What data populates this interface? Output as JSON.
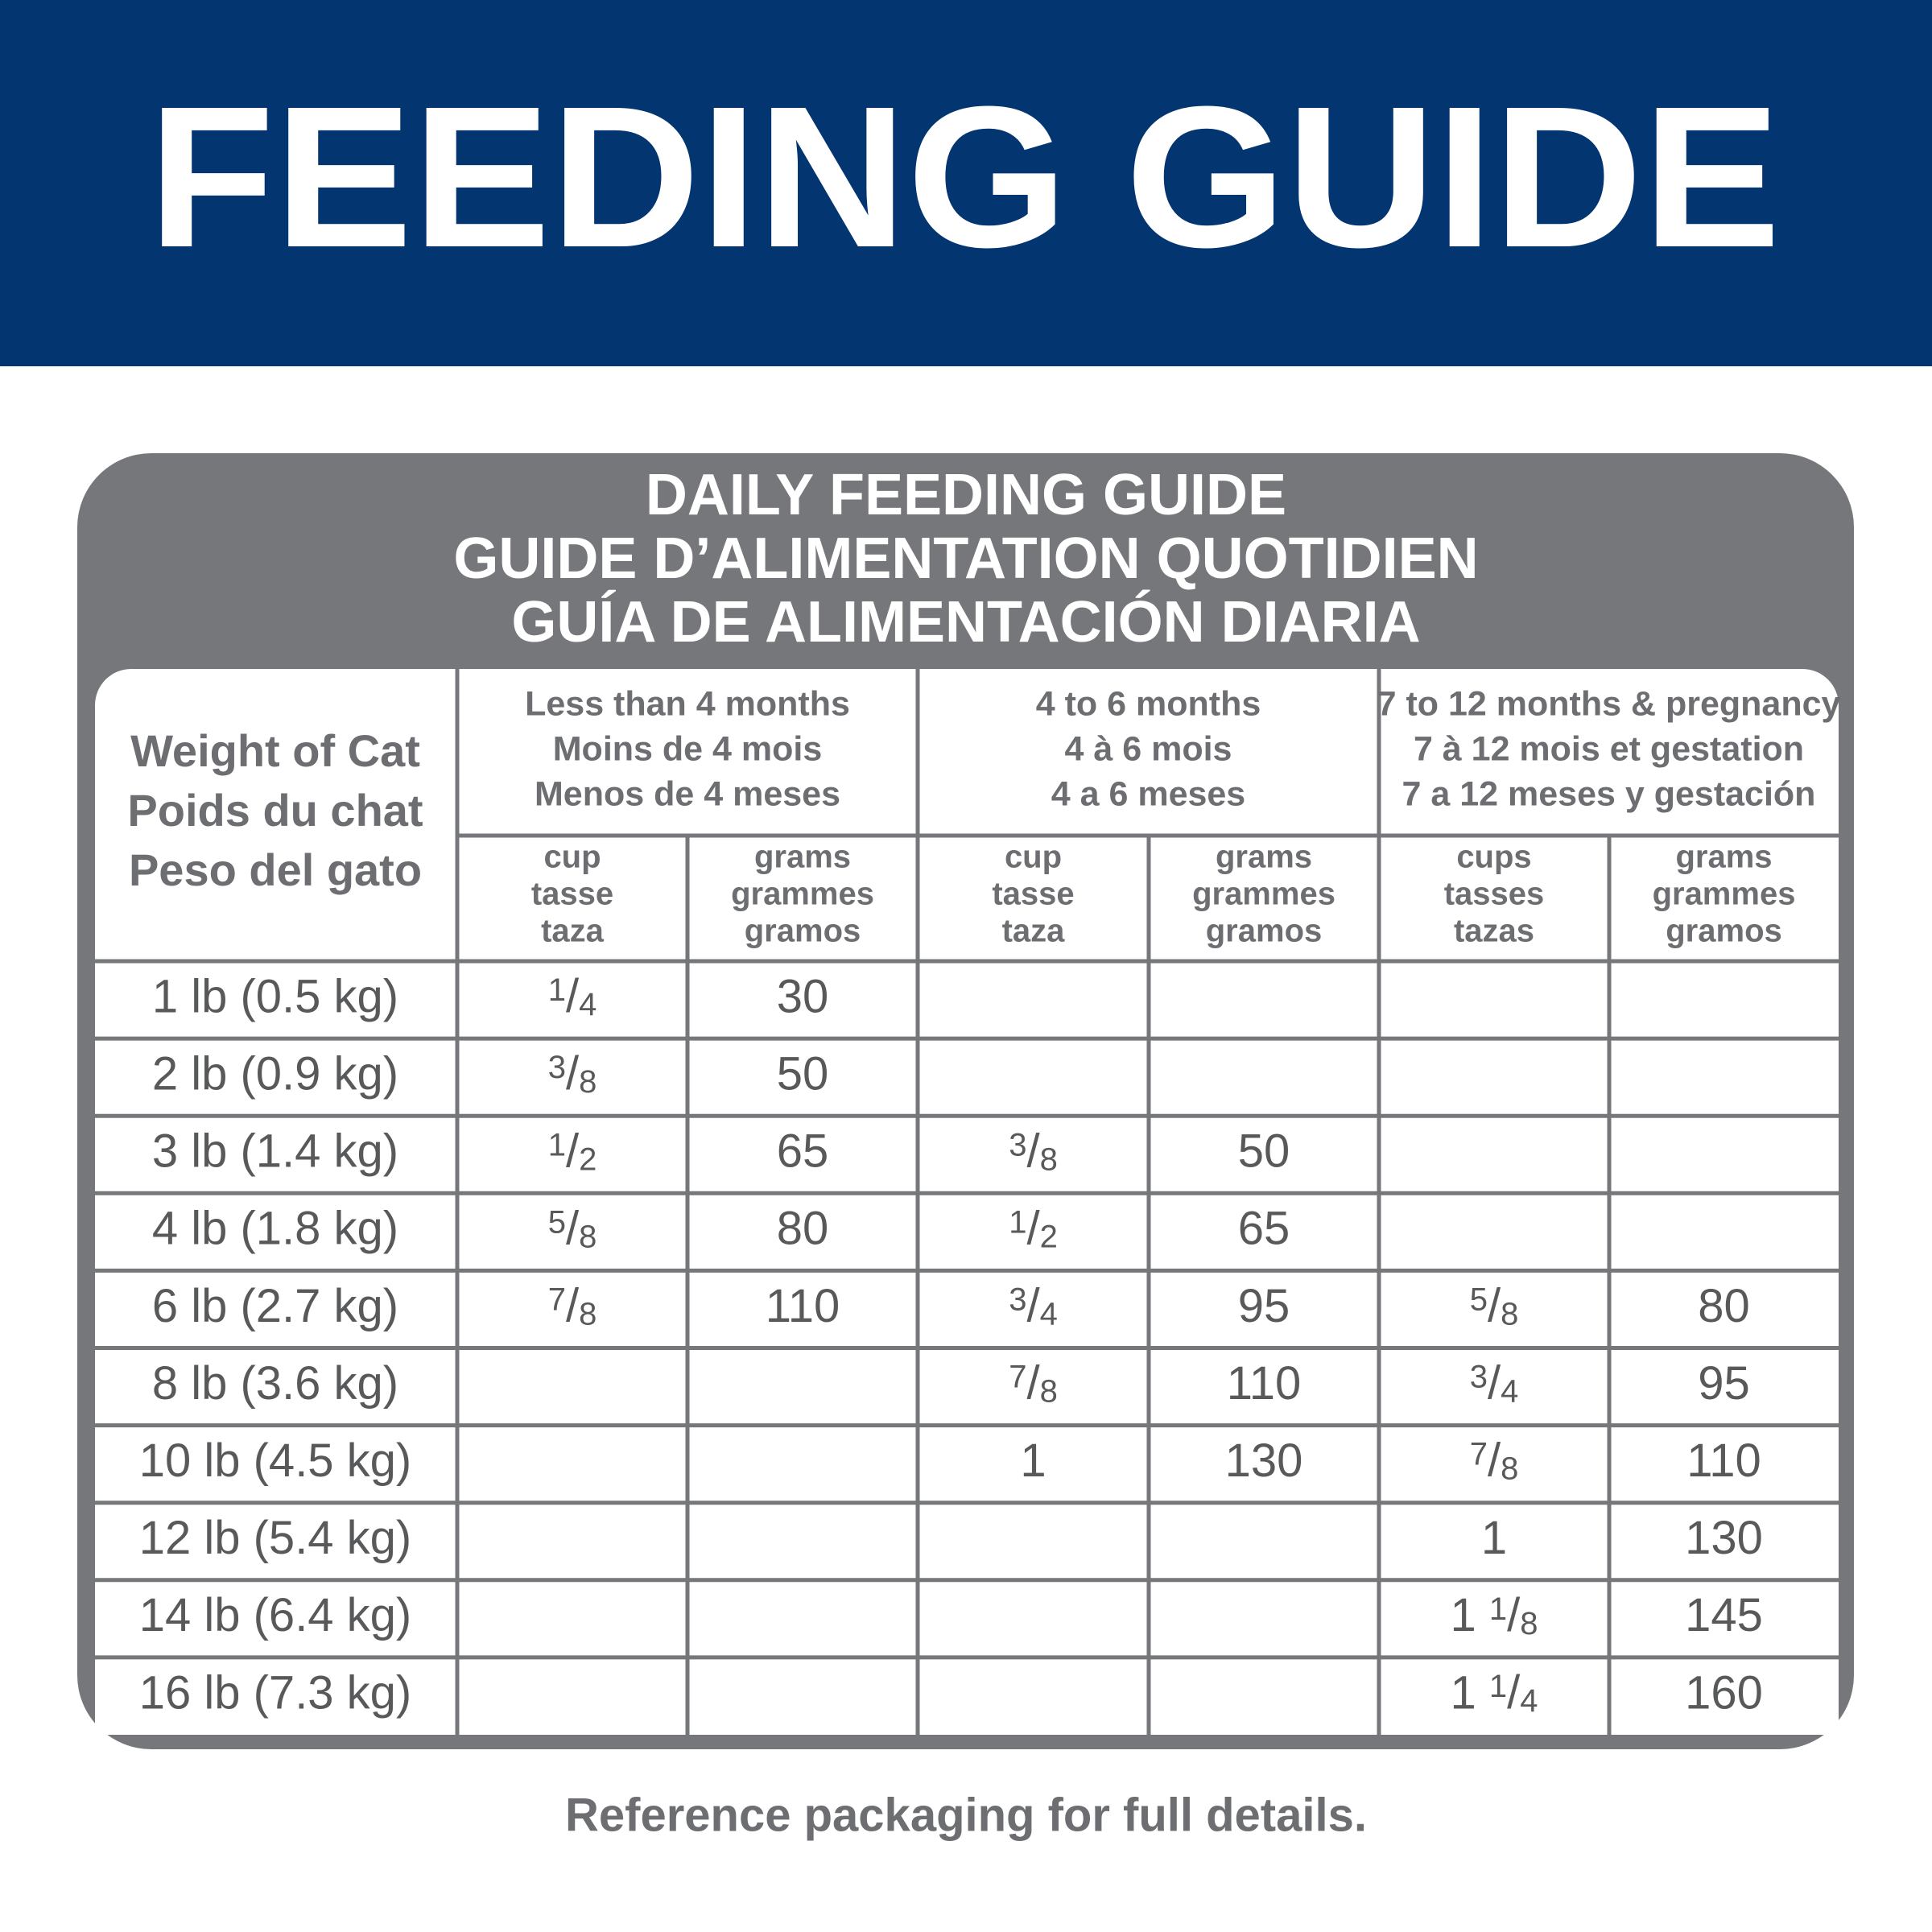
{
  "header": {
    "title": "FEEDING GUIDE"
  },
  "table": {
    "title": [
      "DAILY FEEDING GUIDE",
      "GUIDE D’ALIMENTATION QUOTIDIEN",
      "GUÍA DE ALIMENTACIÓN DIARIA"
    ],
    "weight_header": [
      "Weight of Cat",
      "Poids du chat",
      "Peso del gato"
    ],
    "groups": [
      {
        "label": [
          "Less than 4 months",
          "Moins de 4 mois",
          "Menos de 4 meses"
        ],
        "columns": [
          [
            "cup",
            "tasse",
            "taza"
          ],
          [
            "grams",
            "grammes",
            "gramos"
          ]
        ]
      },
      {
        "label": [
          "4 to 6 months",
          "4 à 6 mois",
          "4 a 6 meses"
        ],
        "columns": [
          [
            "cup",
            "tasse",
            "taza"
          ],
          [
            "grams",
            "grammes",
            "gramos"
          ]
        ]
      },
      {
        "label": [
          "7 to 12 months & pregnancy",
          "7 à 12 mois et gestation",
          "7 a 12 meses y gestación"
        ],
        "columns": [
          [
            "cups",
            "tasses",
            "tazas"
          ],
          [
            "grams",
            "grammes",
            "gramos"
          ]
        ]
      }
    ],
    "rows": [
      {
        "weight": "1 lb (0.5 kg)",
        "cells": [
          "1/4",
          "30",
          null,
          null,
          null,
          null
        ]
      },
      {
        "weight": "2 lb (0.9 kg)",
        "cells": [
          "3/8",
          "50",
          null,
          null,
          null,
          null
        ]
      },
      {
        "weight": "3 lb (1.4 kg)",
        "cells": [
          "1/2",
          "65",
          "3/8",
          "50",
          null,
          null
        ]
      },
      {
        "weight": "4 lb (1.8 kg)",
        "cells": [
          "5/8",
          "80",
          "1/2",
          "65",
          null,
          null
        ]
      },
      {
        "weight": "6 lb (2.7 kg)",
        "cells": [
          "7/8",
          "110",
          "3/4",
          "95",
          "5/8",
          "80"
        ]
      },
      {
        "weight": "8 lb (3.6 kg)",
        "cells": [
          null,
          null,
          "7/8",
          "110",
          "3/4",
          "95"
        ]
      },
      {
        "weight": "10 lb (4.5 kg)",
        "cells": [
          null,
          null,
          "1",
          "130",
          "7/8",
          "110"
        ]
      },
      {
        "weight": "12 lb (5.4 kg)",
        "cells": [
          null,
          null,
          null,
          null,
          "1",
          "130"
        ]
      },
      {
        "weight": "14 lb (6.4 kg)",
        "cells": [
          null,
          null,
          null,
          null,
          "1 1/8",
          "145"
        ]
      },
      {
        "weight": "16 lb (7.3 kg)",
        "cells": [
          null,
          null,
          null,
          null,
          "1 1/4",
          "160"
        ]
      }
    ]
  },
  "footer": {
    "note": "Reference packaging for full details."
  }
}
